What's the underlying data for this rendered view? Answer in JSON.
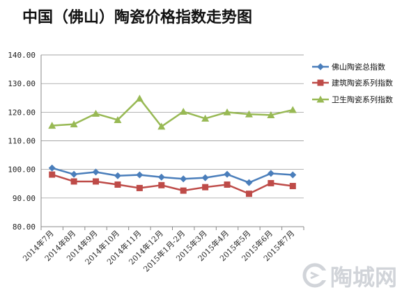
{
  "chart_data": {
    "type": "line",
    "title": "中国（佛山）陶瓷价格指数走势图",
    "categories": [
      "2014年7月",
      "2014年8月",
      "2014年9月",
      "2014年10月",
      "2014年11月",
      "2014年12月",
      "2015年1月-2月",
      "2015年3月",
      "2015年4月",
      "2015年5月",
      "2015年6月",
      "2015年7月"
    ],
    "ylim": [
      80,
      140
    ],
    "yticks": [
      "80.00",
      "90.00",
      "100.00",
      "110.00",
      "120.00",
      "130.00",
      "140.00"
    ],
    "grid": true,
    "legend": "right",
    "series": [
      {
        "name": "佛山陶瓷总指数",
        "color": "#4a7ebb",
        "marker": "diamond",
        "values": [
          100.5,
          98.3,
          99.1,
          97.8,
          98.1,
          97.3,
          96.7,
          97.1,
          98.3,
          95.4,
          98.6,
          98.1
        ]
      },
      {
        "name": "建筑陶瓷系列指数",
        "color": "#be4b48",
        "marker": "square",
        "values": [
          98.2,
          95.8,
          95.8,
          94.7,
          93.5,
          94.5,
          92.6,
          93.8,
          94.7,
          91.5,
          95.2,
          94.2
        ]
      },
      {
        "name": "卫生陶瓷系列指数",
        "color": "#98b954",
        "marker": "triangle",
        "values": [
          115.3,
          115.8,
          119.5,
          117.3,
          124.8,
          115.0,
          120.2,
          117.8,
          120.0,
          119.3,
          119.0,
          120.8
        ]
      }
    ]
  },
  "watermark": {
    "text": "陶城网"
  }
}
